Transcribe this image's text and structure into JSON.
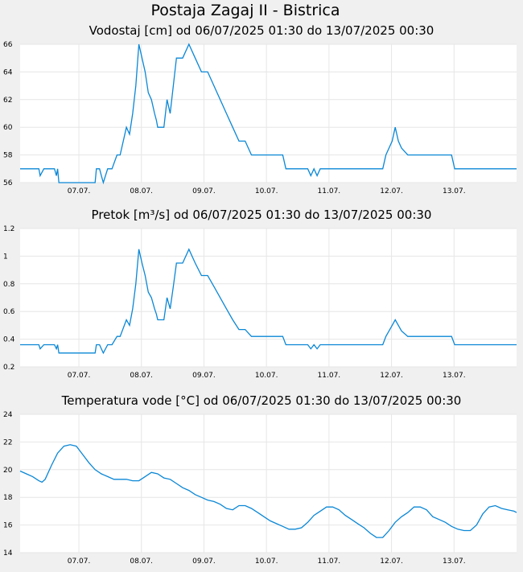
{
  "page": {
    "title": "Postaja Zagaj II - Bistrica"
  },
  "chart_data": [
    {
      "type": "line",
      "title": "Vodostaj [cm] od 06/07/2025 01:30 do 13/07/2025 00:30",
      "ylim": [
        56,
        66
      ],
      "yticks": [
        "56",
        "58",
        "60",
        "62",
        "64",
        "66"
      ],
      "xlim": [
        0,
        7.94
      ],
      "xticks": [
        "07.07.",
        "08.07.",
        "09.07.",
        "10.07.",
        "11.07.",
        "12.07.",
        "13.07."
      ],
      "grid": true,
      "series": [
        {
          "color": "#0a87d6",
          "x": [
            0,
            0.3,
            0.32,
            0.38,
            0.4,
            0.55,
            0.58,
            0.6,
            0.62,
            0.75,
            1.2,
            1.22,
            1.27,
            1.3,
            1.33,
            1.4,
            1.43,
            1.47,
            1.55,
            1.6,
            1.7,
            1.75,
            1.8,
            1.85,
            1.9,
            1.95,
            2.0,
            2.05,
            2.1,
            2.15,
            2.18,
            2.2,
            2.3,
            2.35,
            2.4,
            2.45,
            2.5,
            2.6,
            2.7,
            2.8,
            2.9,
            2.92,
            2.95,
            3.0,
            3.1,
            3.3,
            3.4,
            3.5,
            3.6,
            3.7,
            3.85,
            4.2,
            4.25,
            4.3,
            4.5,
            4.6,
            4.65,
            4.7,
            4.75,
            4.8,
            5.0,
            5.8,
            5.85,
            5.9,
            5.95,
            6.0,
            6.05,
            6.1,
            6.2,
            6.3,
            6.9,
            6.95,
            7.05,
            7.94
          ],
          "values": [
            57,
            57,
            56.5,
            57,
            57,
            57,
            56.5,
            57,
            56,
            56,
            56,
            57,
            57,
            56.5,
            56,
            57,
            57,
            57,
            58,
            58,
            60,
            59.5,
            61,
            63,
            66,
            65,
            64,
            62.5,
            62,
            61,
            60.5,
            60,
            60,
            62,
            61,
            63,
            65,
            65,
            66,
            65,
            64,
            64,
            64,
            64,
            63,
            61,
            60,
            59,
            59,
            58,
            58,
            58,
            57,
            57,
            57,
            57,
            56.5,
            57,
            56.5,
            57,
            57,
            57,
            58,
            58.5,
            59,
            60,
            59,
            58.5,
            58,
            58,
            58,
            57,
            57,
            57
          ]
        }
      ]
    },
    {
      "type": "line",
      "title": "Pretok [m³/s] od 06/07/2025 01:30 do 13/07/2025 00:30",
      "ylim": [
        0.2,
        1.2
      ],
      "yticks": [
        "0.2",
        "0.4",
        "0.6",
        "0.8",
        "1",
        "1.2"
      ],
      "xlim": [
        0,
        7.94
      ],
      "xticks": [
        "07.07.",
        "08.07.",
        "09.07.",
        "10.07.",
        "11.07.",
        "12.07.",
        "13.07."
      ],
      "grid": true,
      "series": [
        {
          "color": "#0a87d6",
          "x": [
            0,
            0.3,
            0.32,
            0.38,
            0.4,
            0.55,
            0.58,
            0.6,
            0.62,
            0.75,
            1.2,
            1.22,
            1.27,
            1.3,
            1.33,
            1.4,
            1.43,
            1.47,
            1.55,
            1.6,
            1.7,
            1.75,
            1.8,
            1.85,
            1.9,
            1.95,
            2.0,
            2.05,
            2.1,
            2.15,
            2.18,
            2.2,
            2.3,
            2.35,
            2.4,
            2.45,
            2.5,
            2.6,
            2.7,
            2.8,
            2.9,
            2.92,
            2.95,
            3.0,
            3.1,
            3.3,
            3.4,
            3.5,
            3.6,
            3.7,
            3.85,
            4.2,
            4.25,
            4.3,
            4.5,
            4.6,
            4.65,
            4.7,
            4.75,
            4.8,
            5.0,
            5.8,
            5.85,
            5.9,
            5.95,
            6.0,
            6.05,
            6.1,
            6.2,
            6.3,
            6.9,
            6.95,
            7.05,
            7.94
          ],
          "values": [
            0.36,
            0.36,
            0.33,
            0.36,
            0.36,
            0.36,
            0.33,
            0.36,
            0.3,
            0.3,
            0.3,
            0.36,
            0.36,
            0.33,
            0.3,
            0.36,
            0.36,
            0.36,
            0.42,
            0.42,
            0.54,
            0.5,
            0.62,
            0.8,
            1.05,
            0.95,
            0.86,
            0.74,
            0.7,
            0.62,
            0.58,
            0.54,
            0.54,
            0.7,
            0.62,
            0.78,
            0.95,
            0.95,
            1.05,
            0.95,
            0.86,
            0.86,
            0.86,
            0.86,
            0.78,
            0.62,
            0.54,
            0.47,
            0.47,
            0.42,
            0.42,
            0.42,
            0.36,
            0.36,
            0.36,
            0.36,
            0.33,
            0.36,
            0.33,
            0.36,
            0.36,
            0.36,
            0.42,
            0.46,
            0.5,
            0.54,
            0.5,
            0.46,
            0.42,
            0.42,
            0.42,
            0.36,
            0.36,
            0.36
          ]
        }
      ]
    },
    {
      "type": "line",
      "title": "Temperatura vode [°C] od 06/07/2025 01:30 do 13/07/2025 00:30",
      "ylim": [
        14,
        24
      ],
      "yticks": [
        "14",
        "16",
        "18",
        "20",
        "22",
        "24"
      ],
      "xlim": [
        0,
        7.94
      ],
      "xticks": [
        "07.07.",
        "08.07.",
        "09.07.",
        "10.07.",
        "11.07.",
        "12.07.",
        "13.07."
      ],
      "grid": true,
      "series": [
        {
          "color": "#0a87d6",
          "x": [
            0,
            0.1,
            0.2,
            0.3,
            0.35,
            0.4,
            0.5,
            0.6,
            0.7,
            0.8,
            0.9,
            1.0,
            1.1,
            1.2,
            1.3,
            1.4,
            1.5,
            1.6,
            1.7,
            1.8,
            1.9,
            2.0,
            2.1,
            2.2,
            2.3,
            2.4,
            2.5,
            2.6,
            2.7,
            2.8,
            2.9,
            3.0,
            3.1,
            3.2,
            3.3,
            3.4,
            3.5,
            3.6,
            3.7,
            3.8,
            3.9,
            4.0,
            4.1,
            4.2,
            4.3,
            4.4,
            4.5,
            4.6,
            4.7,
            4.8,
            4.9,
            5.0,
            5.1,
            5.2,
            5.3,
            5.4,
            5.5,
            5.6,
            5.7,
            5.8,
            5.9,
            6.0,
            6.1,
            6.2,
            6.3,
            6.4,
            6.5,
            6.6,
            6.7,
            6.8,
            6.9,
            7.0,
            7.1,
            7.2,
            7.3,
            7.4,
            7.5,
            7.6,
            7.7,
            7.8,
            7.9,
            7.94
          ],
          "values": [
            19.9,
            19.7,
            19.5,
            19.2,
            19.1,
            19.3,
            20.3,
            21.2,
            21.7,
            21.8,
            21.7,
            21.1,
            20.5,
            20.0,
            19.7,
            19.5,
            19.3,
            19.3,
            19.3,
            19.2,
            19.2,
            19.5,
            19.8,
            19.7,
            19.4,
            19.3,
            19.0,
            18.7,
            18.5,
            18.2,
            18.0,
            17.8,
            17.7,
            17.5,
            17.2,
            17.1,
            17.4,
            17.4,
            17.2,
            16.9,
            16.6,
            16.3,
            16.1,
            15.9,
            15.7,
            15.7,
            15.8,
            16.2,
            16.7,
            17.0,
            17.3,
            17.3,
            17.1,
            16.7,
            16.4,
            16.1,
            15.8,
            15.4,
            15.1,
            15.1,
            15.6,
            16.2,
            16.6,
            16.9,
            17.3,
            17.3,
            17.1,
            16.6,
            16.4,
            16.2,
            15.9,
            15.7,
            15.6,
            15.6,
            16.0,
            16.8,
            17.3,
            17.4,
            17.2,
            17.1,
            17.0,
            16.9
          ]
        }
      ]
    }
  ]
}
